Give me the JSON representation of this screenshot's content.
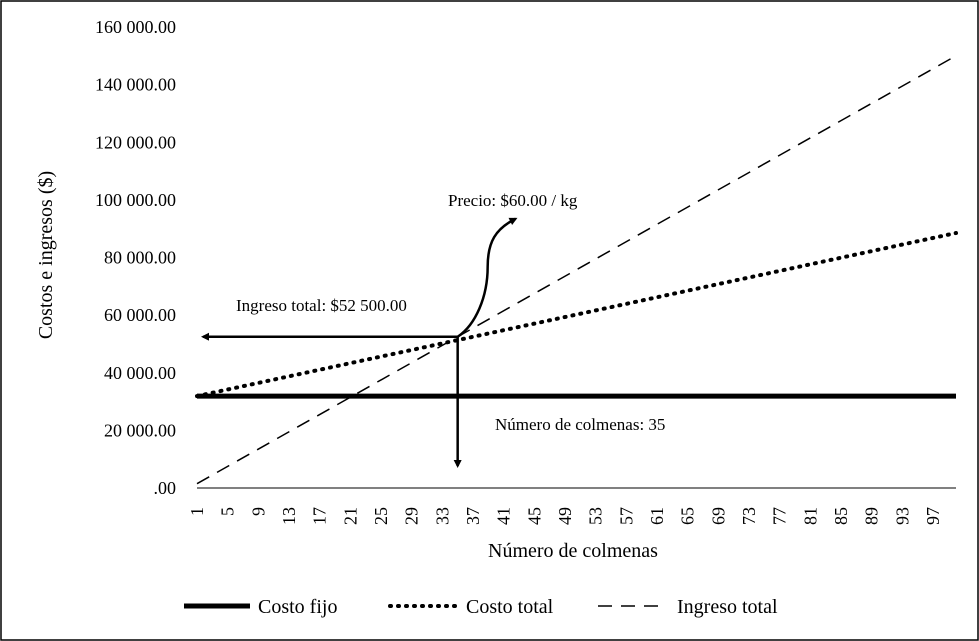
{
  "chart_data": {
    "type": "line",
    "xlabel": "Número de colmenas",
    "ylabel": "Costos e ingresos ($)",
    "x_range": [
      1,
      100
    ],
    "ylim": [
      0,
      160000
    ],
    "y_ticks": [
      0,
      20000,
      40000,
      60000,
      80000,
      100000,
      120000,
      140000,
      160000
    ],
    "y_tick_labels": [
      ".00",
      "20 000.00",
      "40 000.00",
      "60 000.00",
      "80 000.00",
      "100 000.00",
      "120 000.00",
      "140 000.00",
      "160 000.00"
    ],
    "x_tick_labels": [
      "1",
      "5",
      "9",
      "13",
      "17",
      "21",
      "25",
      "29",
      "33",
      "37",
      "41",
      "45",
      "49",
      "53",
      "57",
      "61",
      "65",
      "69",
      "73",
      "77",
      "81",
      "85",
      "89",
      "93",
      "97"
    ],
    "grid": false,
    "legend_position": "bottom",
    "series": [
      {
        "name": "Costo fijo",
        "style": "solid-thick",
        "x": [
          1,
          100
        ],
        "values": [
          31900,
          31900
        ]
      },
      {
        "name": "Costo total",
        "style": "dotted",
        "x": [
          1,
          100
        ],
        "values": [
          31900,
          88500
        ]
      },
      {
        "name": "Ingreso total",
        "style": "dashed",
        "x": [
          1,
          100
        ],
        "values": [
          1500,
          150000
        ]
      }
    ],
    "annotations": {
      "price": {
        "text": "Precio: $60.00 / kg"
      },
      "revenue": {
        "text": "Ingreso total: $52 500.00",
        "value": 52500
      },
      "hives": {
        "text": "Número de colmenas: 35",
        "value": 35
      }
    }
  },
  "colors": {
    "line": "#000000",
    "border": "#000000",
    "background": "#ffffff"
  }
}
